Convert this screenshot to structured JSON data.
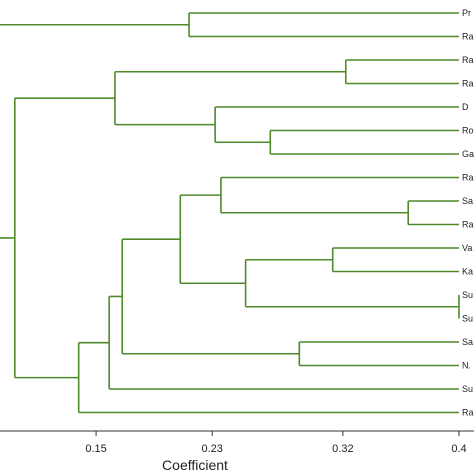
{
  "chart_data": {
    "type": "dendrogram",
    "xlabel": "Coefficient",
    "xlim": [
      0.09,
      0.4
    ],
    "xticks": [
      "0.15",
      "0.23",
      "0.32",
      "0.4"
    ],
    "xtick_values": [
      0.15,
      0.23,
      0.32,
      0.4
    ],
    "leaves": [
      "Pr",
      "Ra",
      "Ra",
      "Ra",
      "D",
      "Ro",
      "Ga",
      "Ra",
      "Sa",
      "Ra",
      "Va",
      "Ka",
      "Su",
      "Su",
      "Sa",
      "N.",
      "Su",
      "Ra"
    ],
    "merges": [
      {
        "a": 0,
        "b": 1,
        "height": 0.214
      },
      {
        "a": 2,
        "b": 3,
        "height": 0.322
      },
      {
        "a": 5,
        "b": 6,
        "height": 0.27
      },
      {
        "a": 4,
        "b": "m2",
        "height": 0.232
      },
      {
        "a": "m1",
        "b": "m3",
        "height": 0.163
      },
      {
        "a": 8,
        "b": 9,
        "height": 0.365
      },
      {
        "a": 7,
        "b": "m5",
        "height": 0.236
      },
      {
        "a": 10,
        "b": 11,
        "height": 0.313
      },
      {
        "a": 12,
        "b": 13,
        "height": 0.4
      },
      {
        "a": "m7",
        "b": "m8",
        "height": 0.253
      },
      {
        "a": "m6",
        "b": "m9",
        "height": 0.208
      },
      {
        "a": 14,
        "b": 15,
        "height": 0.29
      },
      {
        "a": "m10",
        "b": "m11",
        "height": 0.168
      },
      {
        "a": 16,
        "b": "m12",
        "height": 0.159
      },
      {
        "a": 17,
        "b": "m13",
        "height": 0.138
      },
      {
        "a": "m4",
        "b": "m14",
        "height": 0.094
      },
      {
        "a": "m0",
        "b": "m15",
        "height": 0.08
      }
    ],
    "line_color": "#4f8a2b"
  }
}
